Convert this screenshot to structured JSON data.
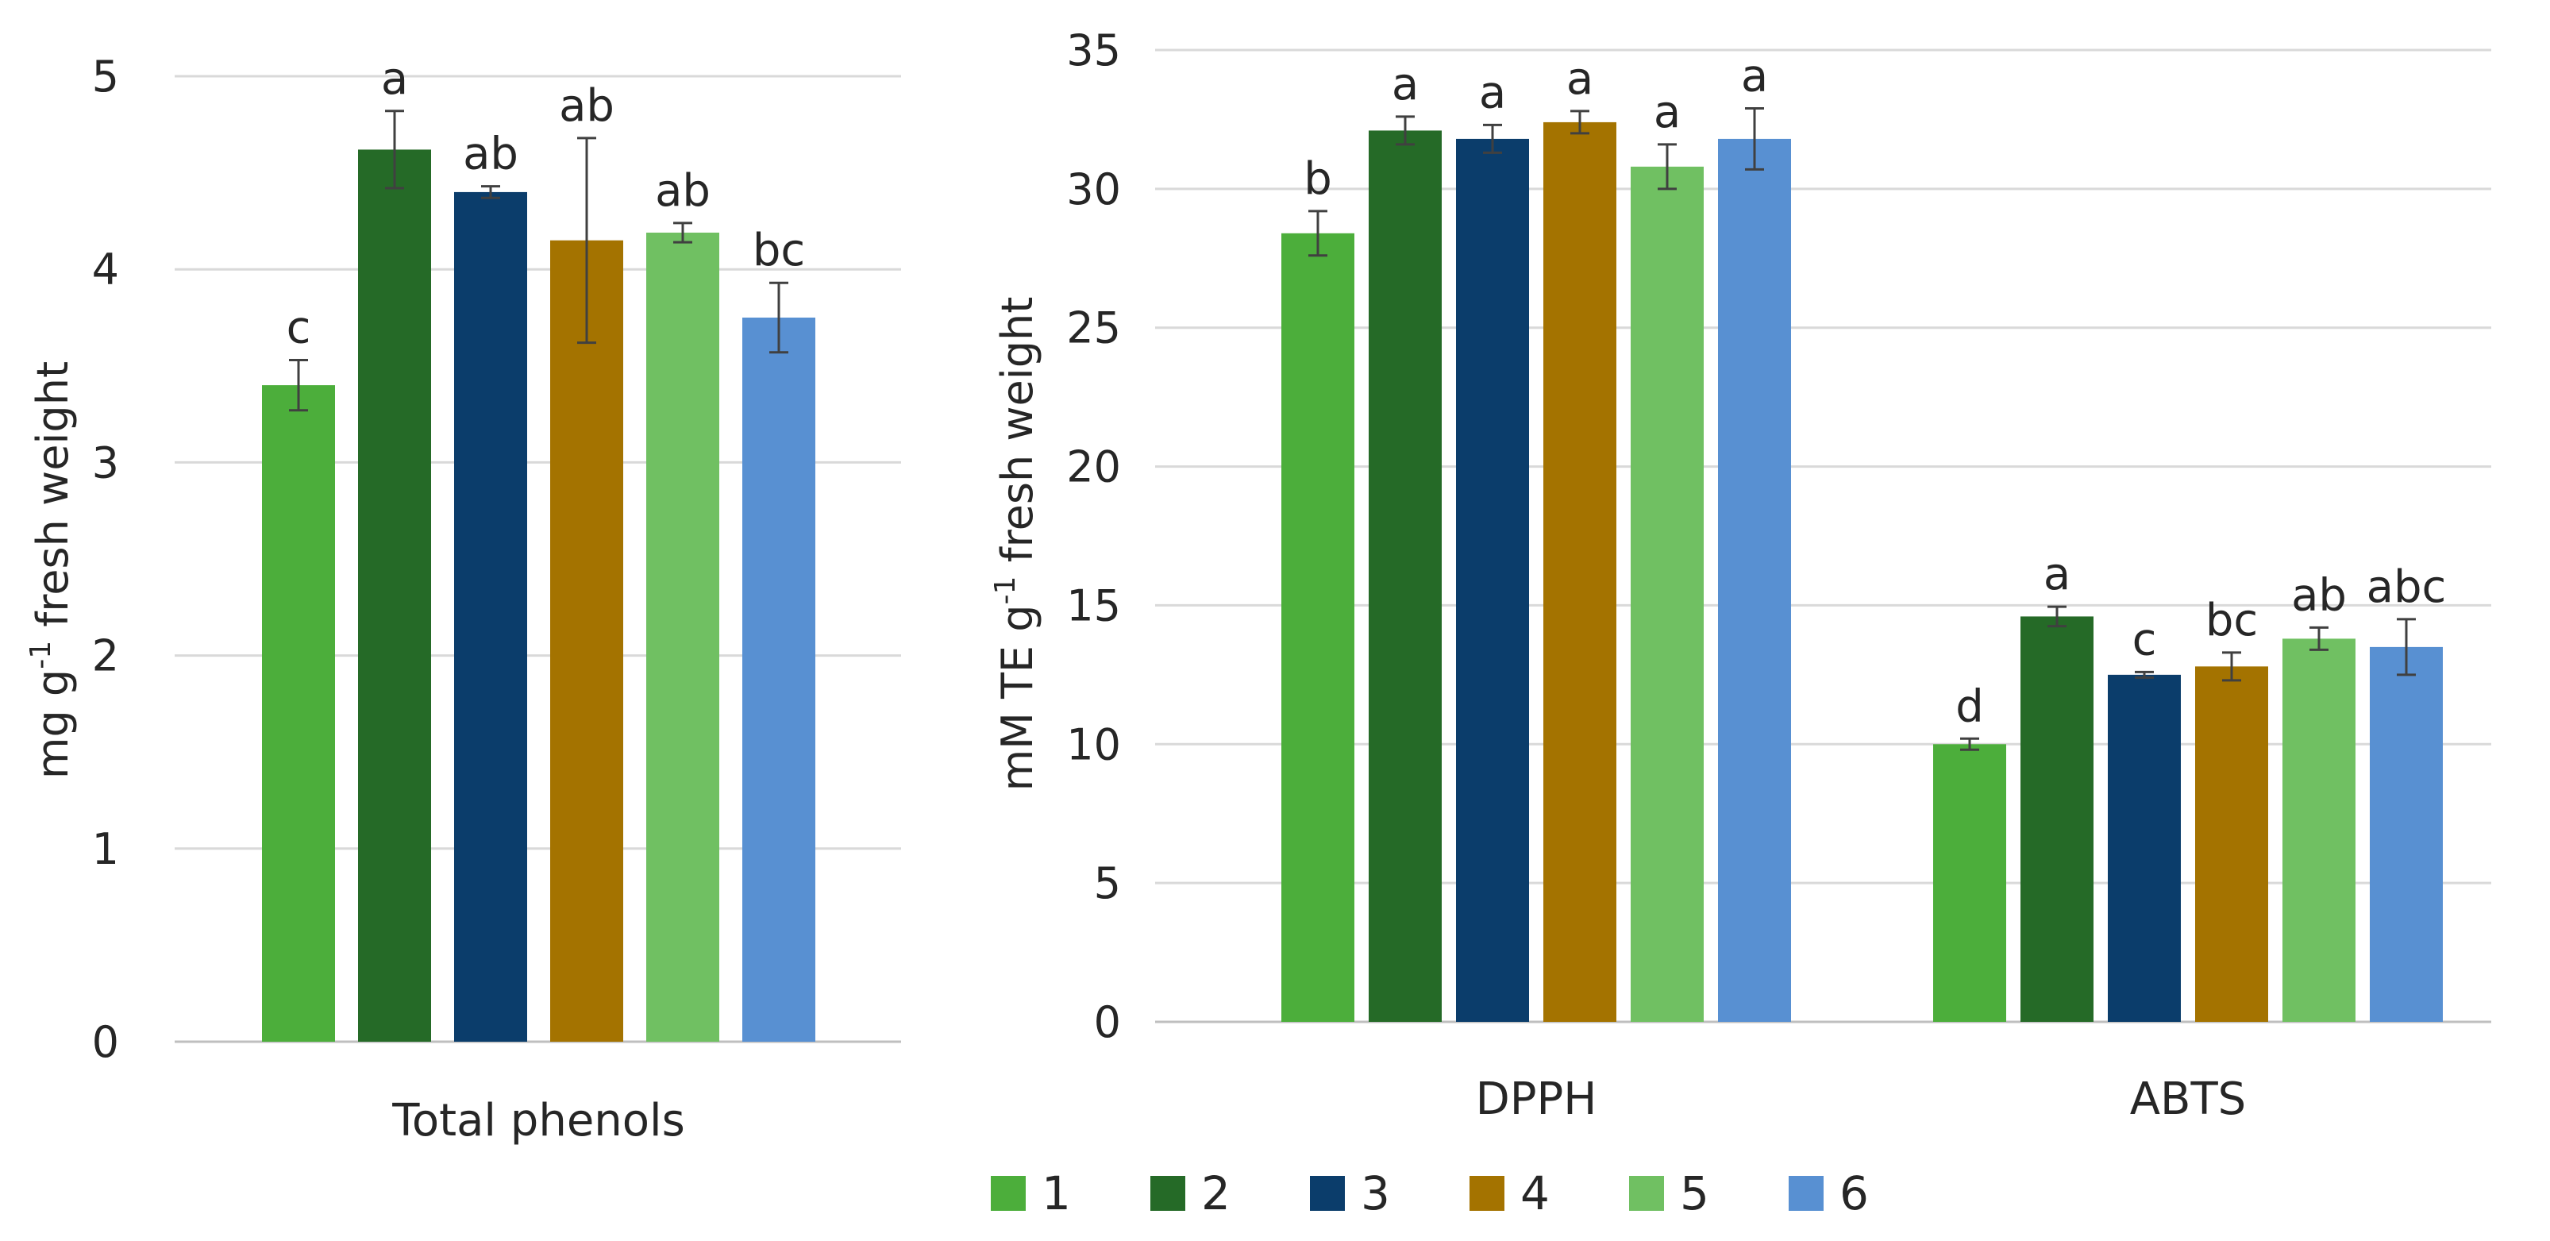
{
  "chart_data": [
    {
      "type": "bar",
      "ylabel": "mg g",
      "ylabel_sup": "-1",
      "ylabel_tail": " fresh weight",
      "ylim": [
        0,
        5
      ],
      "yticks": [
        "0",
        "1",
        "2",
        "3",
        "4",
        "5"
      ],
      "categories": [
        "Total phenols"
      ],
      "series": [
        {
          "name": "1",
          "values": [
            3.4
          ],
          "errors": [
            0.13
          ],
          "letters": [
            "c"
          ]
        },
        {
          "name": "2",
          "values": [
            4.62
          ],
          "errors": [
            0.2
          ],
          "letters": [
            "a"
          ]
        },
        {
          "name": "3",
          "values": [
            4.4
          ],
          "errors": [
            0.03
          ],
          "letters": [
            "ab"
          ]
        },
        {
          "name": "4",
          "values": [
            4.15
          ],
          "errors": [
            0.53
          ],
          "letters": [
            "ab"
          ]
        },
        {
          "name": "5",
          "values": [
            4.19
          ],
          "errors": [
            0.05
          ],
          "letters": [
            "ab"
          ]
        },
        {
          "name": "6",
          "values": [
            3.75
          ],
          "errors": [
            0.18
          ],
          "letters": [
            "bc"
          ]
        }
      ]
    },
    {
      "type": "bar",
      "ylabel": "mM TE g",
      "ylabel_sup": "-1",
      "ylabel_tail": " fresh weight",
      "ylim": [
        0,
        35
      ],
      "yticks": [
        "0",
        "5",
        "10",
        "15",
        "20",
        "25",
        "30",
        "35"
      ],
      "categories": [
        "DPPH",
        "ABTS"
      ],
      "series": [
        {
          "name": "1",
          "values": [
            28.4,
            10.0
          ],
          "errors": [
            0.8,
            0.2
          ],
          "letters": [
            "b",
            "d"
          ]
        },
        {
          "name": "2",
          "values": [
            32.1,
            14.6
          ],
          "errors": [
            0.5,
            0.35
          ],
          "letters": [
            "a",
            "a"
          ]
        },
        {
          "name": "3",
          "values": [
            31.8,
            12.5
          ],
          "errors": [
            0.5,
            0.1
          ],
          "letters": [
            "a",
            "c"
          ]
        },
        {
          "name": "4",
          "values": [
            32.4,
            12.8
          ],
          "errors": [
            0.4,
            0.5
          ],
          "letters": [
            "a",
            "bc"
          ]
        },
        {
          "name": "5",
          "values": [
            30.8,
            13.8
          ],
          "errors": [
            0.8,
            0.4
          ],
          "letters": [
            "a",
            "ab"
          ]
        },
        {
          "name": "6",
          "values": [
            31.8,
            13.5
          ],
          "errors": [
            1.1,
            1.0
          ],
          "letters": [
            "a",
            "abc"
          ]
        }
      ]
    }
  ],
  "legend": {
    "position": "bottom",
    "items": [
      {
        "label": "1",
        "color": "#4cae3b"
      },
      {
        "label": "2",
        "color": "#256a27"
      },
      {
        "label": "3",
        "color": "#0b3d6b"
      },
      {
        "label": "4",
        "color": "#a47300"
      },
      {
        "label": "5",
        "color": "#70c062"
      },
      {
        "label": "6",
        "color": "#5890d2"
      }
    ]
  }
}
